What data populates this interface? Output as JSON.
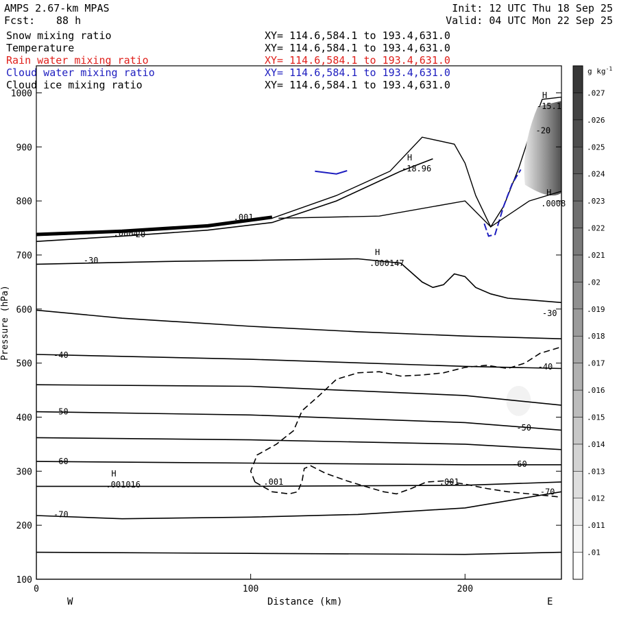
{
  "header": {
    "title": "AMPS 2.67-km MPAS",
    "init": "Init: 12 UTC Thu 18 Sep 25",
    "fcst_label": "Fcst:",
    "fcst_value": "88 h",
    "valid": "Valid: 04 UTC Mon 22 Sep 25"
  },
  "fields": [
    {
      "name": "Snow mixing ratio",
      "range": "XY= 114.6,584.1 to 193.4,631.0",
      "color": "#000000"
    },
    {
      "name": "Temperature",
      "range": "XY= 114.6,584.1 to 193.4,631.0",
      "color": "#000000"
    },
    {
      "name": "Rain water mixing ratio",
      "range": "XY= 114.6,584.1 to 193.4,631.0",
      "color": "#e0201b"
    },
    {
      "name": "Cloud water mixing ratio",
      "range": "XY= 114.6,584.1 to 193.4,631.0",
      "color": "#1d1dbf"
    },
    {
      "name": "Cloud ice mixing ratio",
      "range": "XY= 114.6,584.1 to 193.4,631.0",
      "color": "#000000"
    }
  ],
  "chart_data": {
    "type": "cross-section",
    "xlabel": "Distance (km)",
    "ylabel": "Pressure (hPa)",
    "xlim": [
      0,
      245
    ],
    "ylim": [
      1050,
      100
    ],
    "x_ticks": [
      0,
      100,
      200
    ],
    "y_ticks": [
      100,
      200,
      300,
      400,
      500,
      600,
      700,
      800,
      900,
      1000
    ],
    "x_end_labels": {
      "left": "W",
      "right": "E"
    },
    "temperature_isotherms": [
      {
        "label": "-70",
        "points": [
          [
            0,
            218
          ],
          [
            40,
            212
          ],
          [
            100,
            215
          ],
          [
            150,
            220
          ],
          [
            200,
            232
          ],
          [
            245,
            262
          ]
        ]
      },
      {
        "label": "-70",
        "points": [
          [
            0,
            272
          ],
          [
            100,
            272
          ],
          [
            200,
            274
          ],
          [
            245,
            280
          ]
        ]
      },
      {
        "label": "-60",
        "points": [
          [
            0,
            318
          ],
          [
            100,
            315
          ],
          [
            200,
            312
          ],
          [
            245,
            312
          ]
        ]
      },
      {
        "label": "-60",
        "points": [
          [
            0,
            362
          ],
          [
            100,
            358
          ],
          [
            200,
            350
          ],
          [
            245,
            340
          ]
        ]
      },
      {
        "label": "-50",
        "points": [
          [
            0,
            410
          ],
          [
            100,
            404
          ],
          [
            200,
            390
          ],
          [
            245,
            376
          ]
        ]
      },
      {
        "label": "-50",
        "points": [
          [
            0,
            460
          ],
          [
            100,
            457
          ],
          [
            200,
            440
          ],
          [
            245,
            422
          ]
        ]
      },
      {
        "label": "-40",
        "points": [
          [
            0,
            516
          ],
          [
            100,
            507
          ],
          [
            200,
            494
          ],
          [
            245,
            490
          ]
        ]
      },
      {
        "label": "-40",
        "points": [
          [
            0,
            598
          ],
          [
            40,
            583
          ],
          [
            100,
            568
          ],
          [
            150,
            558
          ],
          [
            200,
            550
          ],
          [
            245,
            545
          ]
        ]
      },
      {
        "label": "-30",
        "points": [
          [
            0,
            683
          ],
          [
            60,
            688
          ],
          [
            100,
            690
          ],
          [
            150,
            693
          ],
          [
            170,
            685
          ],
          [
            180,
            650
          ],
          [
            185,
            640
          ],
          [
            190,
            645
          ],
          [
            195,
            665
          ],
          [
            200,
            660
          ],
          [
            205,
            640
          ],
          [
            212,
            628
          ],
          [
            220,
            620
          ],
          [
            245,
            612
          ]
        ]
      },
      {
        "label": "-20",
        "points": [
          [
            0,
            725
          ],
          [
            40,
            735
          ],
          [
            80,
            746
          ],
          [
            110,
            760
          ],
          [
            140,
            800
          ],
          [
            170,
            855
          ],
          [
            185,
            878
          ]
        ]
      }
    ],
    "snow_contour": {
      "level": 0.001,
      "label": ".001"
    },
    "labels": [
      {
        "text": "-70",
        "x": 8,
        "p": 220
      },
      {
        "text": "-70",
        "x": 235,
        "p": 262
      },
      {
        "text": "-60",
        "x": 8,
        "p": 318
      },
      {
        "text": "-60",
        "x": 222,
        "p": 313
      },
      {
        "text": "-50",
        "x": 8,
        "p": 410
      },
      {
        "text": "-50",
        "x": 224,
        "p": 380
      },
      {
        "text": "-40",
        "x": 8,
        "p": 515
      },
      {
        "text": "-40",
        "x": 234,
        "p": 493
      },
      {
        "text": "-30",
        "x": 22,
        "p": 690
      },
      {
        "text": "-30",
        "x": 236,
        "p": 592
      },
      {
        "text": "-20",
        "x": 44,
        "p": 738
      },
      {
        "text": "-20",
        "x": 233,
        "p": 930
      },
      {
        "text": ".001",
        "x": 106,
        "p": 280
      },
      {
        "text": ".001",
        "x": 188,
        "p": 280
      },
      {
        "text": ".001",
        "x": 92,
        "p": 770
      },
      {
        "text": ".0004",
        "x": 36,
        "p": 740
      }
    ],
    "extrema": [
      {
        "mark": "H",
        "value": ".001016",
        "x": 35,
        "p": 285
      },
      {
        "mark": "H",
        "value": ".000147",
        "x": 158,
        "p": 695
      },
      {
        "mark": "H",
        "value": "-18.96",
        "x": 173,
        "p": 870
      },
      {
        "mark": "H",
        "value": ".0008",
        "x": 238,
        "p": 805
      },
      {
        "mark": "H",
        "value": "-15.1",
        "x": 236,
        "p": 985
      }
    ],
    "colorbar": {
      "units": "g kg",
      "units_exp": "-1",
      "values": [
        ".01",
        ".011",
        ".012",
        ".013",
        ".014",
        ".015",
        ".016",
        ".017",
        ".018",
        ".019",
        ".02",
        ".021",
        ".022",
        ".023",
        ".024",
        ".025",
        ".026",
        ".027"
      ]
    }
  }
}
